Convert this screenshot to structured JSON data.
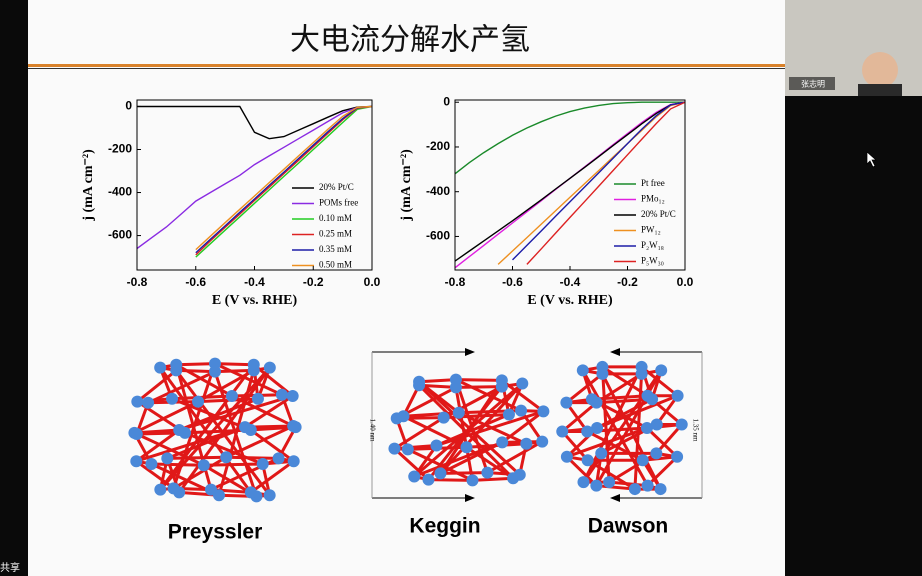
{
  "slide_title": "大电流分解水产氢",
  "participant_name": "张志明",
  "sharing_label": "共享",
  "chart_data": [
    {
      "type": "line",
      "xlabel": "E (V vs. RHE)",
      "ylabel": "j (mA cm⁻²)",
      "x": [
        -0.8,
        -0.75,
        -0.7,
        -0.65,
        -0.6,
        -0.55,
        -0.5,
        -0.45,
        -0.4,
        -0.35,
        -0.3,
        -0.25,
        -0.2,
        -0.15,
        -0.1,
        -0.05,
        0
      ],
      "xlim": [
        -0.8,
        0
      ],
      "ylim": [
        -760,
        30
      ],
      "xticks": [
        -0.8,
        -0.6,
        -0.4,
        -0.2,
        {
          "value": 0,
          "label": "0.0"
        }
      ],
      "yticks": [
        0,
        -200,
        -400,
        -600
      ],
      "series": [
        {
          "name": "20% Pt/C",
          "color": "#000000",
          "values": [
            0,
            0,
            0,
            0,
            0,
            0,
            0,
            0,
            -120,
            -150,
            -140,
            -110,
            -80,
            -50,
            -20,
            -3,
            0
          ]
        },
        {
          "name": "POMs free",
          "color": "#8a2be2",
          "values": [
            -660,
            -610,
            -560,
            -500,
            -440,
            -400,
            -360,
            -320,
            -270,
            -230,
            -190,
            -150,
            -110,
            -70,
            -30,
            -5,
            0
          ]
        },
        {
          "name": "0.10 mM",
          "color": "#22cc22",
          "values": [
            null,
            null,
            null,
            null,
            -700,
            -638,
            -575,
            -513,
            -450,
            -388,
            -325,
            -263,
            -200,
            -138,
            -75,
            -13,
            0
          ]
        },
        {
          "name": "0.25 mM",
          "color": "#dd2222",
          "values": [
            null,
            null,
            null,
            null,
            -690,
            -625,
            -562,
            -500,
            -437,
            -375,
            -312,
            -250,
            -187,
            -125,
            -62,
            -8,
            0
          ]
        },
        {
          "name": "0.35 mM",
          "color": "#1c1ca8",
          "values": [
            null,
            null,
            null,
            null,
            -680,
            -617,
            -555,
            -492,
            -430,
            -367,
            -305,
            -242,
            -180,
            -118,
            -57,
            -6,
            0
          ]
        },
        {
          "name": "0.50 mM",
          "color": "#ee9020",
          "values": [
            null,
            null,
            null,
            null,
            -665,
            -603,
            -540,
            -478,
            -416,
            -354,
            -292,
            -230,
            -168,
            -106,
            -46,
            -4,
            0
          ]
        }
      ]
    },
    {
      "type": "line",
      "xlabel": "E (V vs. RHE)",
      "ylabel": "j (mA cm⁻²)",
      "x": [
        -0.8,
        -0.75,
        -0.7,
        -0.65,
        -0.6,
        -0.55,
        -0.5,
        -0.45,
        -0.4,
        -0.35,
        -0.3,
        -0.25,
        -0.2,
        -0.15,
        -0.1,
        -0.05,
        0
      ],
      "xlim": [
        -0.8,
        0
      ],
      "ylim": [
        -750,
        10
      ],
      "xticks": [
        -0.8,
        -0.6,
        -0.4,
        -0.2,
        {
          "value": 0,
          "label": "0.0"
        }
      ],
      "yticks": [
        0,
        -200,
        -400,
        -600
      ],
      "series": [
        {
          "name": "Pt free",
          "color": "#1a8a2a",
          "values": [
            -320,
            -270,
            -225,
            -185,
            -148,
            -115,
            -87,
            -62,
            -42,
            -26,
            -14,
            -6,
            -2,
            0,
            0,
            0,
            0
          ]
        },
        {
          "name": "PMo₁₂",
          "color": "#e020e0",
          "values": [
            -740,
            -690,
            -640,
            -590,
            -540,
            -490,
            -440,
            -390,
            -340,
            -290,
            -240,
            -190,
            -140,
            -90,
            -45,
            -10,
            0
          ]
        },
        {
          "name": "20% Pt/C",
          "color": "#000000",
          "values": [
            -710,
            -665,
            -620,
            -575,
            -530,
            -483,
            -436,
            -388,
            -340,
            -292,
            -243,
            -194,
            -145,
            -96,
            -50,
            -12,
            0
          ]
        },
        {
          "name": "PW₁₂",
          "color": "#ee9020",
          "values": [
            null,
            null,
            null,
            -725,
            -665,
            -605,
            -545,
            -485,
            -425,
            -365,
            -305,
            -245,
            -185,
            -125,
            -65,
            -15,
            0
          ]
        },
        {
          "name": "P₂W₁₈",
          "color": "#1c1ca8",
          "values": [
            null,
            null,
            null,
            null,
            -705,
            -640,
            -575,
            -510,
            -445,
            -380,
            -315,
            -250,
            -185,
            -120,
            -60,
            -12,
            0
          ]
        },
        {
          "name": "P₅W₃₀",
          "color": "#dd2222",
          "values": [
            null,
            null,
            null,
            null,
            null,
            -725,
            -655,
            -585,
            -515,
            -445,
            -375,
            -305,
            -235,
            -165,
            -95,
            -30,
            0
          ]
        }
      ]
    }
  ],
  "structures": [
    {
      "label": "Preyssler"
    },
    {
      "label": "Keggin",
      "size": "1.40 nm"
    },
    {
      "label": "Dawson",
      "size": "1.35 nm"
    }
  ]
}
